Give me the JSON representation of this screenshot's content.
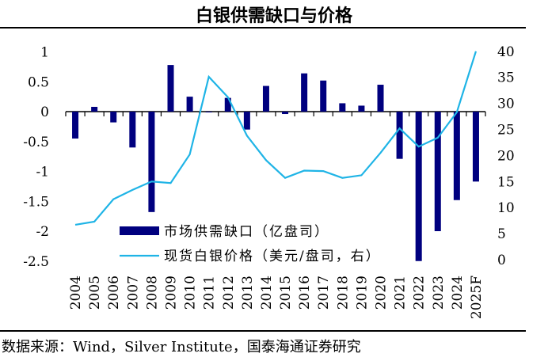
{
  "chart_data": {
    "type": "bar+line",
    "title": "白银供需缺口与价格",
    "categories": [
      "2004",
      "2005",
      "2006",
      "2007",
      "2008",
      "2009",
      "2010",
      "2011",
      "2012",
      "2013",
      "2014",
      "2015",
      "2016",
      "2017",
      "2018",
      "2019",
      "2020",
      "2021",
      "2022",
      "2023",
      "2024",
      "2025F"
    ],
    "series": [
      {
        "name": "市场供需缺口（亿盘司）",
        "type": "bar",
        "axis": "left",
        "color": "#00007f",
        "values": [
          -0.45,
          0.08,
          -0.18,
          -0.6,
          -1.68,
          0.78,
          0.25,
          -0.01,
          0.23,
          -0.3,
          0.43,
          -0.04,
          0.64,
          0.52,
          0.14,
          0.1,
          0.45,
          -0.79,
          -2.5,
          -2.0,
          -1.48,
          -1.17
        ]
      },
      {
        "name": "现货白银价格（美元/盘司，右）",
        "type": "line",
        "axis": "right",
        "color": "#1fb4e6",
        "values": [
          6.7,
          7.3,
          11.6,
          13.4,
          15.0,
          14.7,
          20.2,
          35.1,
          31.2,
          23.8,
          19.1,
          15.7,
          17.1,
          17.0,
          15.7,
          16.2,
          20.5,
          25.2,
          21.7,
          23.4,
          28.3,
          40.0
        ]
      }
    ],
    "left_axis": {
      "ylim": [
        -2.5,
        1
      ],
      "ticks": [
        "1",
        "0.5",
        "0",
        "-0.5",
        "-1",
        "-1.5",
        "-2",
        "-2.5"
      ],
      "tick_values": [
        1,
        0.5,
        0,
        -0.5,
        -1,
        -1.5,
        -2,
        -2.5
      ]
    },
    "right_axis": {
      "ylim": [
        0,
        40
      ],
      "ticks": [
        "40",
        "35",
        "30",
        "25",
        "20",
        "15",
        "10",
        "5",
        "0"
      ],
      "tick_values": [
        40,
        35,
        30,
        25,
        20,
        15,
        10,
        5,
        0
      ]
    },
    "legend_position": "bottom-center",
    "grid": false
  },
  "source": "数据来源：Wind，Silver Institute，国泰海通证券研究"
}
